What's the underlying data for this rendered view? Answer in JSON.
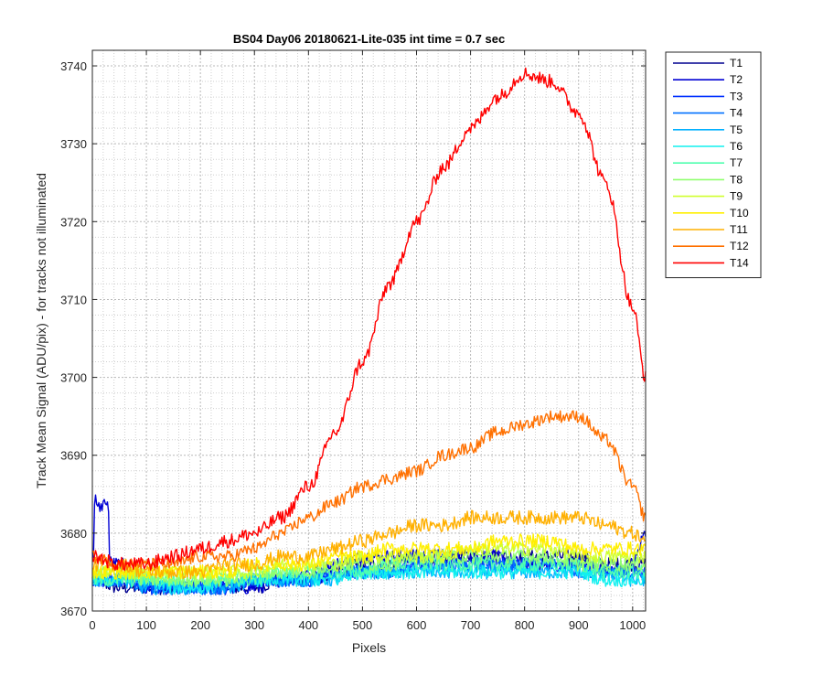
{
  "chart_data": {
    "type": "line",
    "title": "BS04 Day06 20180621-Lite-035 int time = 0.7 sec",
    "xlabel": "Pixels",
    "ylabel": "Track Mean Signal (ADU/pix) - for tracks not illuminated",
    "xlim": [
      0,
      1024
    ],
    "ylim": [
      3670,
      3742
    ],
    "xticks": [
      0,
      100,
      200,
      300,
      400,
      500,
      600,
      700,
      800,
      900,
      1000
    ],
    "yticks": [
      3670,
      3680,
      3690,
      3700,
      3710,
      3720,
      3730,
      3740
    ],
    "grid": "major and minor (dotted)",
    "legend_location": "outside right, top",
    "x": [
      0,
      50,
      100,
      150,
      200,
      250,
      300,
      350,
      400,
      450,
      500,
      550,
      600,
      650,
      700,
      750,
      800,
      850,
      900,
      950,
      1000,
      1024
    ],
    "series": [
      {
        "name": "T1",
        "color": "#00008f",
        "values": [
          3674,
          3673,
          3673,
          3673,
          3673,
          3673,
          3673,
          3674,
          3674,
          3675,
          3676,
          3676,
          3677,
          3677,
          3677,
          3677,
          3677,
          3677,
          3677,
          3676,
          3676,
          3676
        ]
      },
      {
        "name": "T2",
        "color": "#0000d4",
        "values": [
          3677,
          3676,
          3673,
          3673,
          3673,
          3673,
          3673,
          3674,
          3675,
          3676,
          3677,
          3677,
          3677,
          3677,
          3677,
          3677,
          3676,
          3676,
          3676,
          3675,
          3676,
          3680
        ]
      },
      {
        "name": "T3",
        "color": "#0030ff",
        "values": [
          3674,
          3674,
          3673,
          3673,
          3673,
          3673,
          3674,
          3674,
          3674,
          3675,
          3675,
          3675,
          3676,
          3676,
          3676,
          3676,
          3676,
          3676,
          3676,
          3675,
          3675,
          3675
        ]
      },
      {
        "name": "T4",
        "color": "#0070ff",
        "values": [
          3674,
          3674,
          3673,
          3673,
          3673,
          3673,
          3674,
          3674,
          3674,
          3675,
          3675,
          3675,
          3676,
          3676,
          3676,
          3676,
          3676,
          3676,
          3675,
          3675,
          3675,
          3674
        ]
      },
      {
        "name": "T5",
        "color": "#00b0ff",
        "values": [
          3674,
          3674,
          3673,
          3673,
          3673,
          3673,
          3674,
          3674,
          3674,
          3674,
          3675,
          3675,
          3675,
          3675,
          3675,
          3675,
          3675,
          3675,
          3675,
          3675,
          3674,
          3674
        ]
      },
      {
        "name": "T6",
        "color": "#10f0ef",
        "values": [
          3674,
          3674,
          3674,
          3673,
          3673,
          3674,
          3674,
          3674,
          3674,
          3674,
          3675,
          3675,
          3675,
          3675,
          3675,
          3675,
          3675,
          3675,
          3675,
          3674,
          3674,
          3674
        ]
      },
      {
        "name": "T7",
        "color": "#50ffaf",
        "values": [
          3674,
          3674,
          3674,
          3674,
          3674,
          3674,
          3674,
          3675,
          3675,
          3675,
          3675,
          3676,
          3676,
          3676,
          3676,
          3676,
          3676,
          3676,
          3676,
          3675,
          3675,
          3675
        ]
      },
      {
        "name": "T8",
        "color": "#90ff6f",
        "values": [
          3675,
          3675,
          3674,
          3674,
          3674,
          3674,
          3675,
          3675,
          3675,
          3676,
          3676,
          3676,
          3677,
          3677,
          3677,
          3677,
          3677,
          3677,
          3676,
          3676,
          3676,
          3676
        ]
      },
      {
        "name": "T9",
        "color": "#d0ff2f",
        "values": [
          3675,
          3675,
          3675,
          3675,
          3675,
          3675,
          3675,
          3676,
          3676,
          3676,
          3677,
          3677,
          3677,
          3677,
          3678,
          3678,
          3678,
          3678,
          3677,
          3677,
          3677,
          3677
        ]
      },
      {
        "name": "T10",
        "color": "#ffef00",
        "values": [
          3675,
          3675,
          3675,
          3675,
          3675,
          3675,
          3676,
          3676,
          3676,
          3677,
          3677,
          3678,
          3678,
          3678,
          3678,
          3679,
          3679,
          3679,
          3678,
          3678,
          3678,
          3678
        ]
      },
      {
        "name": "T11",
        "color": "#ffb000",
        "values": [
          3676,
          3676,
          3675,
          3675,
          3675,
          3676,
          3676,
          3677,
          3677,
          3678,
          3679,
          3680,
          3681,
          3681,
          3682,
          3682,
          3682,
          3682,
          3682,
          3681,
          3680,
          3679
        ]
      },
      {
        "name": "T12",
        "color": "#ff7000",
        "values": [
          3677,
          3676,
          3676,
          3676,
          3677,
          3677,
          3678,
          3680,
          3682,
          3684,
          3686,
          3687,
          3688,
          3690,
          3691,
          3693,
          3694,
          3695,
          3695,
          3692,
          3686,
          3682
        ]
      },
      {
        "name": "T14",
        "color": "#ff0000",
        "values": [
          3677,
          3676,
          3676,
          3677,
          3678,
          3679,
          3680,
          3682,
          3686,
          3693,
          3702,
          3712,
          3720,
          3727,
          3732,
          3736,
          3739,
          3738,
          3734,
          3725,
          3709,
          3700
        ]
      }
    ]
  }
}
